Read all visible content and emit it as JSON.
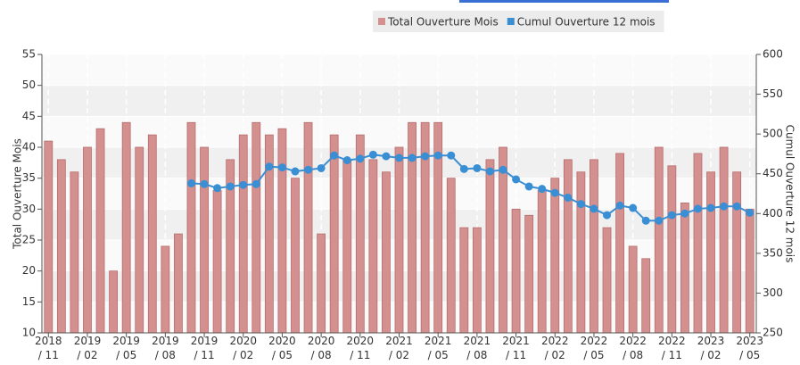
{
  "chart_data": {
    "type": "bar_line",
    "categories": [
      "2018\n/ 11",
      null,
      null,
      "2019\n/ 02",
      null,
      null,
      "2019\n/ 05",
      null,
      null,
      "2019\n/ 08",
      null,
      null,
      "2019\n/ 11",
      null,
      null,
      "2020\n/ 02",
      null,
      null,
      "2020\n/ 05",
      null,
      null,
      "2020\n/ 08",
      null,
      null,
      "2020\n/ 11",
      null,
      null,
      "2021\n/ 02",
      null,
      null,
      "2021\n/ 05",
      null,
      null,
      "2021\n/ 08",
      null,
      null,
      "2021\n/ 11",
      null,
      null,
      "2022\n/ 02",
      null,
      null,
      "2022\n/ 05",
      null,
      null,
      "2022\n/ 08",
      null,
      null,
      "2022\n/ 11",
      null,
      null,
      "2023\n/ 02",
      null,
      null,
      "2023\n/ 05"
    ],
    "series": [
      {
        "name": "Total Ouverture Mois",
        "color": "#d4908f",
        "type": "bar",
        "axis": "y",
        "values": [
          41,
          38,
          36,
          40,
          43,
          20,
          44,
          40,
          42,
          24,
          26,
          44,
          40,
          33,
          38,
          42,
          44,
          42,
          43,
          35,
          44,
          26,
          42,
          38,
          42,
          38,
          36,
          40,
          44,
          44,
          44,
          35,
          27,
          27,
          38,
          40,
          30,
          29,
          33,
          35,
          38,
          36,
          38,
          27,
          39,
          24,
          22,
          40,
          37,
          31,
          39,
          36,
          40,
          36,
          30
        ]
      },
      {
        "name": "Cumul Ouverture 12 mois",
        "color": "#3a8fd4",
        "type": "line",
        "axis": "y2",
        "values": [
          null,
          null,
          null,
          null,
          null,
          null,
          null,
          null,
          null,
          null,
          null,
          438,
          437,
          432,
          434,
          436,
          437,
          459,
          458,
          453,
          455,
          457,
          473,
          467,
          469,
          474,
          472,
          470,
          470,
          472,
          473,
          473,
          456,
          457,
          453,
          455,
          443,
          434,
          431,
          426,
          420,
          412,
          406,
          398,
          410,
          407,
          391,
          391,
          398,
          400,
          406,
          407,
          409,
          409,
          401
        ]
      }
    ],
    "ylabel": "Total Ouverture Mois",
    "y2label": "Cumul Ouverture 12 mois",
    "ylim": [
      10,
      55
    ],
    "yticks": [
      10,
      15,
      20,
      25,
      30,
      35,
      40,
      45,
      50,
      55
    ],
    "y2lim": [
      250,
      600
    ],
    "y2ticks": [
      250,
      300,
      350,
      400,
      450,
      500,
      550,
      600
    ],
    "grid": true
  }
}
